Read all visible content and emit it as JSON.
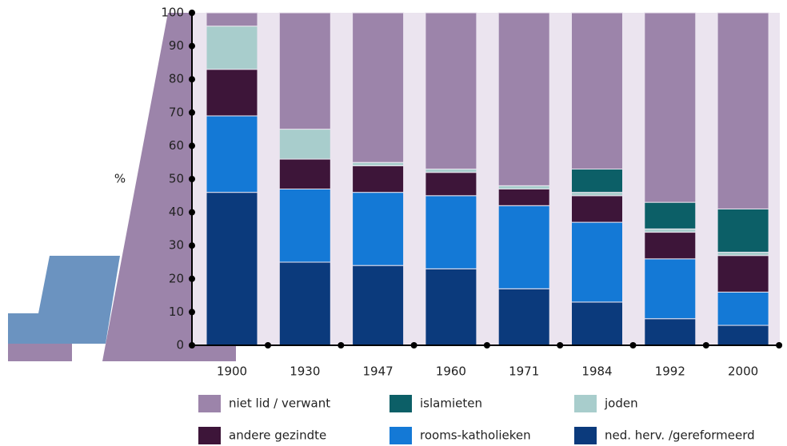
{
  "chart_data": {
    "type": "stacked_bar",
    "y_label": "%",
    "categories": [
      "1900",
      "1930",
      "1947",
      "1960",
      "1971",
      "1984",
      "1992",
      "2000"
    ],
    "series": [
      {
        "name": "ned. herv. /gereformeerd",
        "color": "#0b3a7c",
        "values": [
          46,
          25,
          24,
          23,
          17,
          13,
          8,
          6
        ]
      },
      {
        "name": "rooms-katholieken",
        "color": "#1479d6",
        "values": [
          23,
          22,
          22,
          22,
          25,
          24,
          18,
          10
        ]
      },
      {
        "name": "andere gezindte",
        "color": "#3d1539",
        "values": [
          14,
          9,
          8,
          7,
          5,
          8,
          8,
          11
        ]
      },
      {
        "name": "joden",
        "color": "#a8cdcc",
        "values": [
          13,
          9,
          1,
          1,
          1,
          1,
          1,
          1
        ]
      },
      {
        "name": "islamieten",
        "color": "#0c5f67",
        "values": [
          0,
          0,
          0,
          0,
          0,
          7,
          8,
          13
        ]
      },
      {
        "name": "niet lid / verwant",
        "color": "#9c84aa",
        "values": [
          4,
          35,
          45,
          47,
          52,
          47,
          57,
          59
        ]
      }
    ],
    "ylim": [
      0,
      100
    ],
    "yticks": [
      0,
      10,
      20,
      30,
      40,
      50,
      60,
      70,
      80,
      90,
      100
    ]
  }
}
